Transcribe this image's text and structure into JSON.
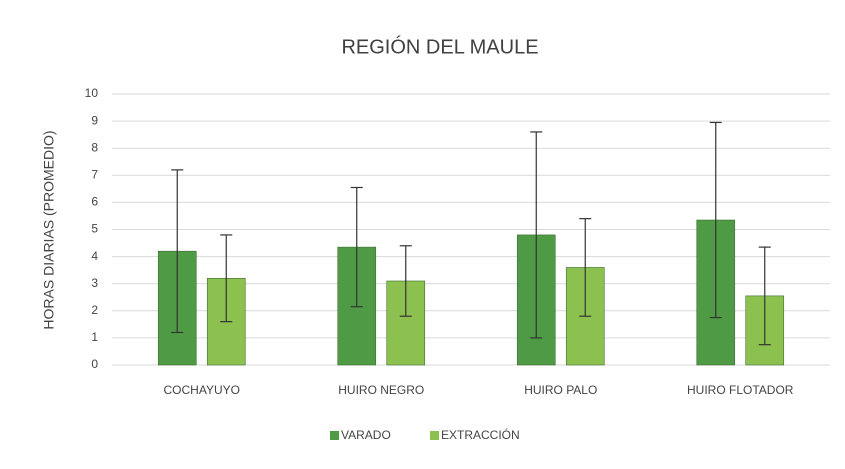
{
  "chart_data": {
    "type": "bar",
    "title": "REGIÓN DEL MAULE",
    "y_label": "HORAS DIARIAS (PROMEDIO)",
    "categories": [
      "COCHAYUYO",
      "HUIRO NEGRO",
      "HUIRO PALO",
      "HUIRO FLOTADOR"
    ],
    "series": [
      {
        "name": "VARADO",
        "color": "#4f9a45",
        "values": [
          4.2,
          4.35,
          4.8,
          5.35
        ],
        "errors": [
          3.0,
          2.2,
          3.8,
          3.6
        ]
      },
      {
        "name": "EXTRACCIÓN",
        "color": "#8cc14f",
        "values": [
          3.2,
          3.1,
          3.6,
          2.55
        ],
        "errors": [
          1.6,
          1.3,
          1.8,
          1.8
        ]
      }
    ],
    "ylim": [
      0,
      10
    ],
    "yticks": [
      0,
      1,
      2,
      3,
      4,
      5,
      6,
      7,
      8,
      9,
      10
    ],
    "grid": true,
    "legend": "bottom"
  }
}
